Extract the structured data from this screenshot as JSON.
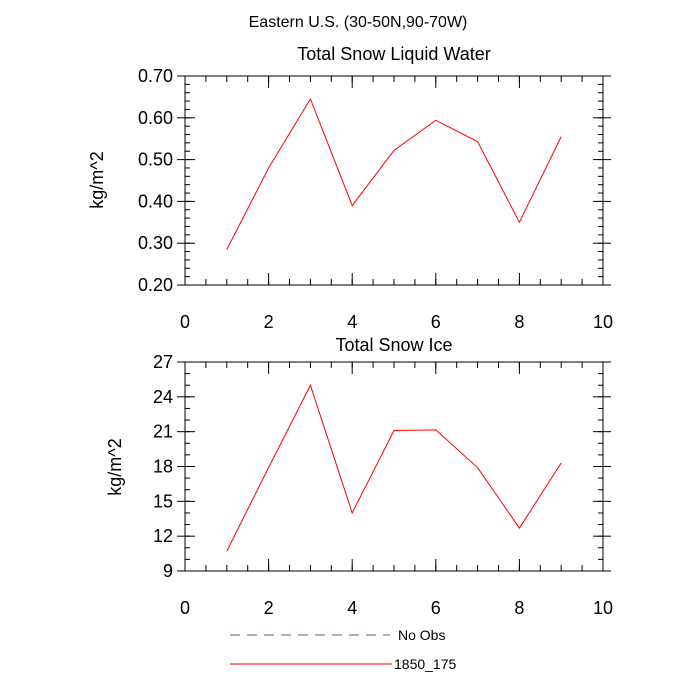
{
  "page_title": "Eastern U.S. (30-50N,90-70W)",
  "chart_data": [
    {
      "type": "line",
      "title": "Total Snow Liquid Water",
      "xlabel": "",
      "ylabel": "kg/m^2",
      "xlim": [
        0,
        10
      ],
      "ylim": [
        0.2,
        0.7
      ],
      "x_ticks": [
        0,
        2,
        4,
        6,
        8,
        10
      ],
      "x_tick_labels": [
        "0",
        "2",
        "4",
        "6",
        "8",
        "10"
      ],
      "y_ticks": [
        0.2,
        0.3,
        0.4,
        0.5,
        0.6,
        0.7
      ],
      "y_tick_labels": [
        "0.20",
        "0.30",
        "0.40",
        "0.50",
        "0.60",
        "0.70"
      ],
      "x_minor_step": 0.5,
      "y_minor_step": 0.02,
      "series": [
        {
          "name": "1850_175",
          "color": "#ff0000",
          "x": [
            1,
            2,
            3,
            4,
            5,
            6,
            7,
            8,
            9
          ],
          "values": [
            0.285,
            0.48,
            0.645,
            0.39,
            0.522,
            0.594,
            0.543,
            0.35,
            0.555
          ]
        }
      ]
    },
    {
      "type": "line",
      "title": "Total Snow Ice",
      "xlabel": "",
      "ylabel": "kg/m^2",
      "xlim": [
        0,
        10
      ],
      "ylim": [
        9,
        27
      ],
      "x_ticks": [
        0,
        2,
        4,
        6,
        8,
        10
      ],
      "x_tick_labels": [
        "0",
        "2",
        "4",
        "6",
        "8",
        "10"
      ],
      "y_ticks": [
        9,
        12,
        15,
        18,
        21,
        24,
        27
      ],
      "y_tick_labels": [
        "9",
        "12",
        "15",
        "18",
        "21",
        "24",
        "27"
      ],
      "x_minor_step": 0.5,
      "y_minor_step": 1,
      "series": [
        {
          "name": "1850_175",
          "color": "#ff0000",
          "x": [
            1,
            2,
            3,
            4,
            5,
            6,
            7,
            8,
            9
          ],
          "values": [
            10.7,
            17.9,
            25.0,
            14.0,
            21.1,
            21.15,
            17.9,
            12.7,
            18.3
          ]
        }
      ]
    }
  ],
  "legend": [
    {
      "label": "No Obs",
      "color": "#5a5a9a",
      "style": "dashed"
    },
    {
      "label": "1850_175",
      "color": "#ff0000",
      "style": "solid"
    }
  ]
}
